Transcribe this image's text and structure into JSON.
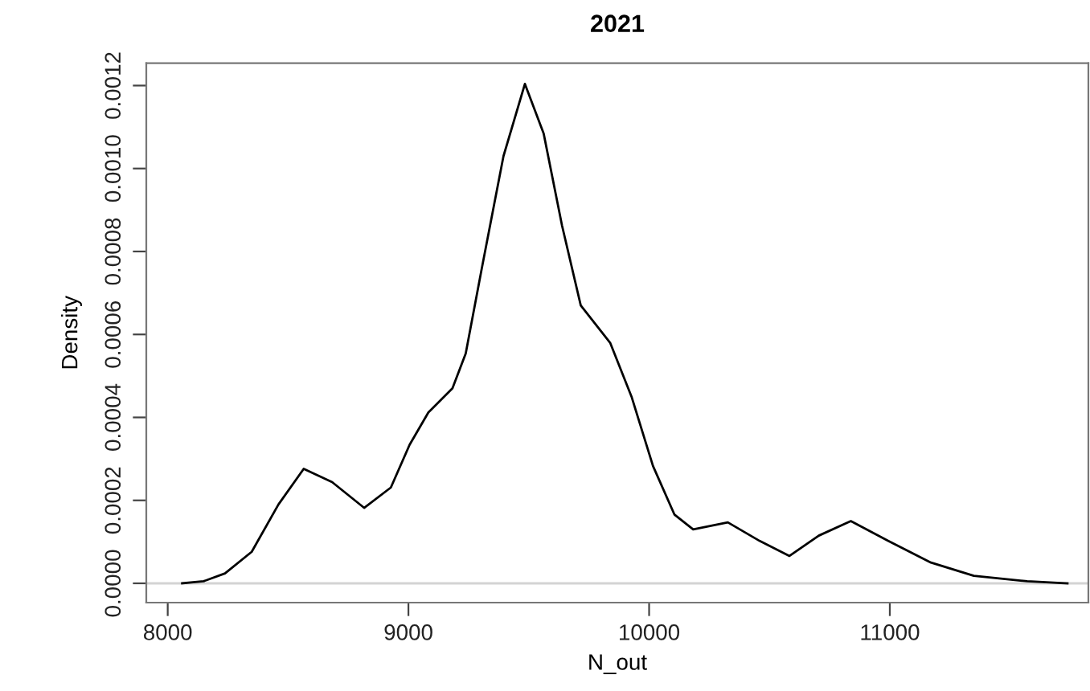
{
  "chart_data": {
    "type": "line",
    "title": "2021",
    "xlabel": "N_out",
    "ylabel": "Density",
    "x": [
      8060,
      8149,
      8238,
      8349,
      8460,
      8565,
      8683,
      8816,
      8927,
      9005,
      9083,
      9183,
      9238,
      9305,
      9395,
      9484,
      9562,
      9638,
      9716,
      9838,
      9927,
      10016,
      10105,
      10183,
      10327,
      10460,
      10583,
      10705,
      10838,
      10994,
      11171,
      11349,
      11571,
      11738
    ],
    "series": [
      {
        "color": "#000000",
        "values": [
          0.0,
          5e-06,
          2.4e-05,
          7.6e-05,
          0.00019,
          0.000276,
          0.000244,
          0.000182,
          0.000231,
          0.000334,
          0.000412,
          0.00047,
          0.000554,
          0.00076,
          0.00103,
          0.001204,
          0.001084,
          0.000863,
          0.00067,
          0.00058,
          0.00045,
          0.000283,
          0.000166,
          0.00013,
          0.000147,
          0.000102,
          6.6e-05,
          0.000115,
          0.00015,
          0.000102,
          5e-05,
          1.8e-05,
          5e-06,
          0.0
        ]
      }
    ],
    "xlim": [
      7911,
      11825
    ],
    "ylim": [
      -4.65e-05,
      0.001254
    ],
    "xticks": [
      8000,
      9000,
      10000,
      11000
    ],
    "yticks": [
      {
        "value": 0,
        "label": "0.0000"
      },
      {
        "value": 0.0002,
        "label": "0.0002"
      },
      {
        "value": 0.0004,
        "label": "0.0004"
      },
      {
        "value": 0.0006,
        "label": "0.0006"
      },
      {
        "value": 0.0008,
        "label": "0.0008"
      },
      {
        "value": 0.001,
        "label": "0.0010"
      },
      {
        "value": 0.0012,
        "label": "0.0012"
      }
    ],
    "ref_lines": [
      {
        "axis": "y",
        "value": 0,
        "color": "#d3d3d3"
      }
    ],
    "grid": false,
    "legend": false,
    "marker": "none",
    "line_style": "solid"
  }
}
